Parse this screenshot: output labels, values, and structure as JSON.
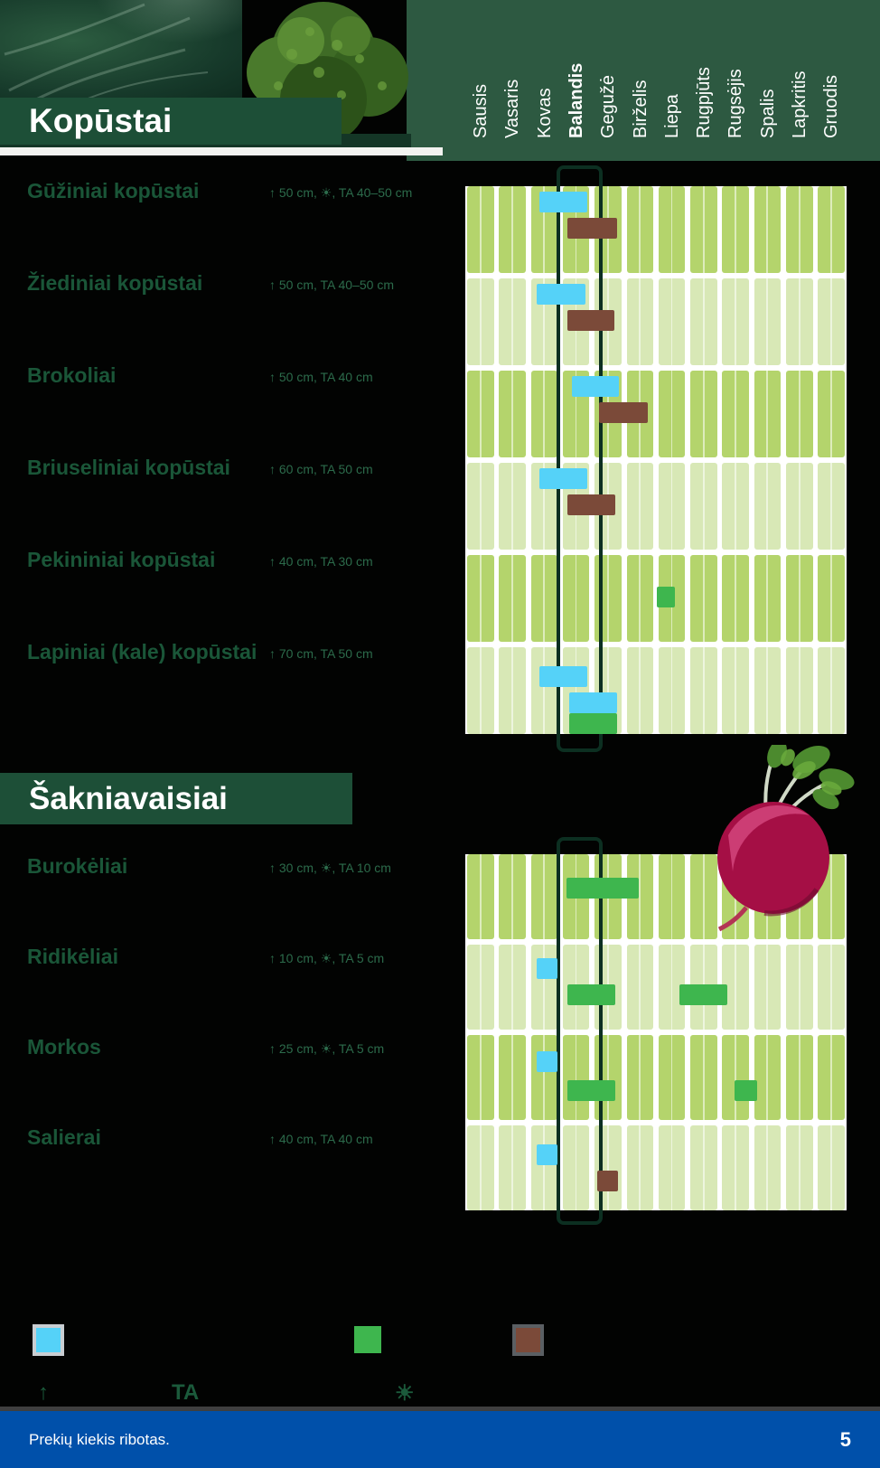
{
  "months": [
    "Sausis",
    "Vasaris",
    "Kovas",
    "Balandis",
    "Gegužė",
    "Birželis",
    "Liepa",
    "Rugpjūts",
    "Rugsėjis",
    "Spalis",
    "Lapkritis",
    "Gruodis"
  ],
  "highlighted_month": "Balandis",
  "sections": [
    {
      "title": "Kopūstai",
      "rows": [
        {
          "name": "Gūžiniai kopūstai",
          "spec": "↑ 50 cm, ☀, TA 40–50 cm",
          "bars": [
            {
              "color": "blue",
              "from": 2.27,
              "to": 3.77,
              "slot": 0
            },
            {
              "color": "brown",
              "from": 3.14,
              "to": 4.7,
              "slot": 1
            }
          ]
        },
        {
          "name": "Žiediniai kopūstai",
          "spec": "↑ 50 cm, TA 40–50 cm",
          "bars": [
            {
              "color": "blue",
              "from": 2.18,
              "to": 3.71,
              "slot": 0
            },
            {
              "color": "brown",
              "from": 3.14,
              "to": 4.62,
              "slot": 1
            }
          ]
        },
        {
          "name": "Brokoliai",
          "spec": "↑ 50 cm, TA 40 cm",
          "bars": [
            {
              "color": "blue",
              "from": 3.29,
              "to": 4.76,
              "slot": 0
            },
            {
              "color": "brown",
              "from": 4.14,
              "to": 5.67,
              "slot": 1
            }
          ]
        },
        {
          "name": "Briuseliniai kopūstai",
          "spec": "↑ 60 cm, TA 50 cm",
          "bars": [
            {
              "color": "blue",
              "from": 2.27,
              "to": 3.77,
              "slot": 0
            },
            {
              "color": "brown",
              "from": 3.14,
              "to": 4.65,
              "slot": 1
            }
          ]
        },
        {
          "name": "Pekininiai kopūstai",
          "spec": "↑ 40 cm, TA 30 cm",
          "bars": [
            {
              "color": "green",
              "from": 5.95,
              "to": 6.52,
              "slot": 1
            }
          ]
        },
        {
          "name": "Lapiniai (kale) kopūstai",
          "spec": "↑ 70 cm, TA 50 cm",
          "bars": [
            {
              "color": "blue",
              "from": 2.27,
              "to": 3.77,
              "slot": 0.5
            },
            {
              "color": "blue",
              "from": 3.2,
              "to": 4.7,
              "slot": 1.5
            },
            {
              "color": "green",
              "from": 3.2,
              "to": 4.7,
              "slot": 2.3
            }
          ]
        }
      ]
    },
    {
      "title": "Šakniavaisiai",
      "rows": [
        {
          "name": "Burokėliai",
          "spec": "↑ 30 cm, ☀, TA 10 cm",
          "bars": [
            {
              "color": "green",
              "from": 3.12,
              "to": 5.38,
              "slot": 0.7
            }
          ]
        },
        {
          "name": "Ridikėliai",
          "spec": "↑ 10 cm, ☀, TA 5 cm",
          "bars": [
            {
              "color": "blue",
              "from": 2.18,
              "to": 2.83,
              "slot": 0.3
            },
            {
              "color": "green",
              "from": 3.14,
              "to": 4.65,
              "slot": 1.3
            },
            {
              "color": "green",
              "from": 6.66,
              "to": 8.16,
              "slot": 1.3
            }
          ]
        },
        {
          "name": "Morkos",
          "spec": "↑ 25 cm, ☀, TA 5 cm",
          "bars": [
            {
              "color": "blue",
              "from": 2.18,
              "to": 2.83,
              "slot": 0.4
            },
            {
              "color": "green",
              "from": 3.14,
              "to": 4.65,
              "slot": 1.5
            },
            {
              "color": "green",
              "from": 8.39,
              "to": 9.09,
              "slot": 1.5
            }
          ]
        },
        {
          "name": "Salierai",
          "spec": "↑ 40 cm, TA 40 cm",
          "bars": [
            {
              "color": "blue",
              "from": 2.18,
              "to": 2.83,
              "slot": 0.5
            },
            {
              "color": "brown",
              "from": 4.08,
              "to": 4.73,
              "slot": 1.5
            }
          ]
        }
      ]
    }
  ],
  "legend": {
    "swatches": [
      {
        "name": "blue-swatch",
        "color": "#55d2f8",
        "border": "#c9ced2"
      },
      {
        "name": "green-swatch",
        "color": "#3eb64e",
        "border": ""
      },
      {
        "name": "brown-swatch",
        "color": "#7b4a39",
        "border": "#5a5f63"
      }
    ],
    "symbols": [
      "↑",
      "TA",
      "☀"
    ]
  },
  "footer": {
    "note": "Prekių kiekis ribotas.",
    "page_number": "5"
  },
  "colors": {
    "bar_blue": "#55d2f8",
    "bar_green": "#3eb64e",
    "bar_brown": "#7b4a39",
    "cell": "#b4d46c",
    "cell_light": "#d8e8b6",
    "band_bg": "#ffffff",
    "header_green": "#2d5941",
    "title_band_green": "#1d4f37",
    "label_green": "#1a5638",
    "spec_green": "#2c6b4b",
    "highlight_outline": "#0c2f21",
    "footer_blue": "#0050aa"
  }
}
